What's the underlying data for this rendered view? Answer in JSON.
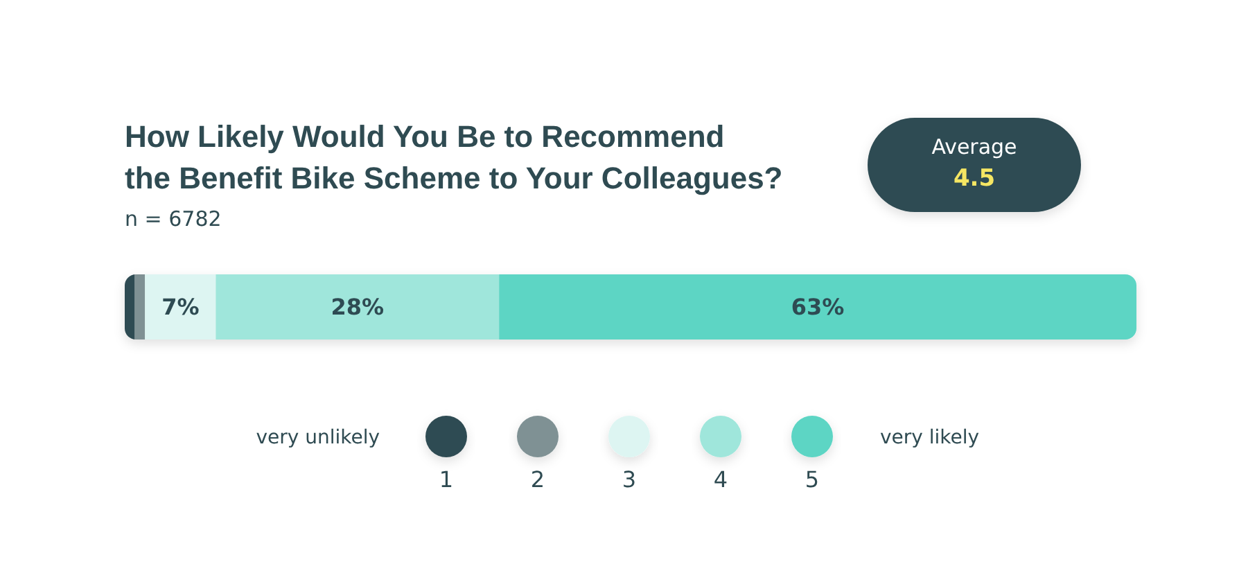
{
  "chart_data": {
    "type": "bar",
    "orientation": "horizontal",
    "stacked": true,
    "title": "How Likely Would You Be to Recommend\nthe Benefit Bike Scheme to Your Colleagues?",
    "subtitle": "n = 6782",
    "categories": [
      null
    ],
    "series": [
      {
        "name": "1",
        "color": "#2f4b52",
        "values": [
          1
        ],
        "value_labels": [
          null
        ]
      },
      {
        "name": "2",
        "color": "#7f9194",
        "values": [
          1
        ],
        "value_labels": [
          null
        ]
      },
      {
        "name": "3",
        "color": "#ddf5f2",
        "values": [
          7
        ],
        "value_labels": [
          "7%"
        ]
      },
      {
        "name": "4",
        "color": "#9fe6db",
        "values": [
          28
        ],
        "value_labels": [
          "28%"
        ]
      },
      {
        "name": "5",
        "color": "#5dd5c4",
        "values": [
          63
        ],
        "value_labels": [
          "63%"
        ]
      }
    ],
    "legend": "bottom",
    "annotations": [
      "Average",
      "4.5",
      "very unlikely",
      "very likely"
    ]
  }
}
